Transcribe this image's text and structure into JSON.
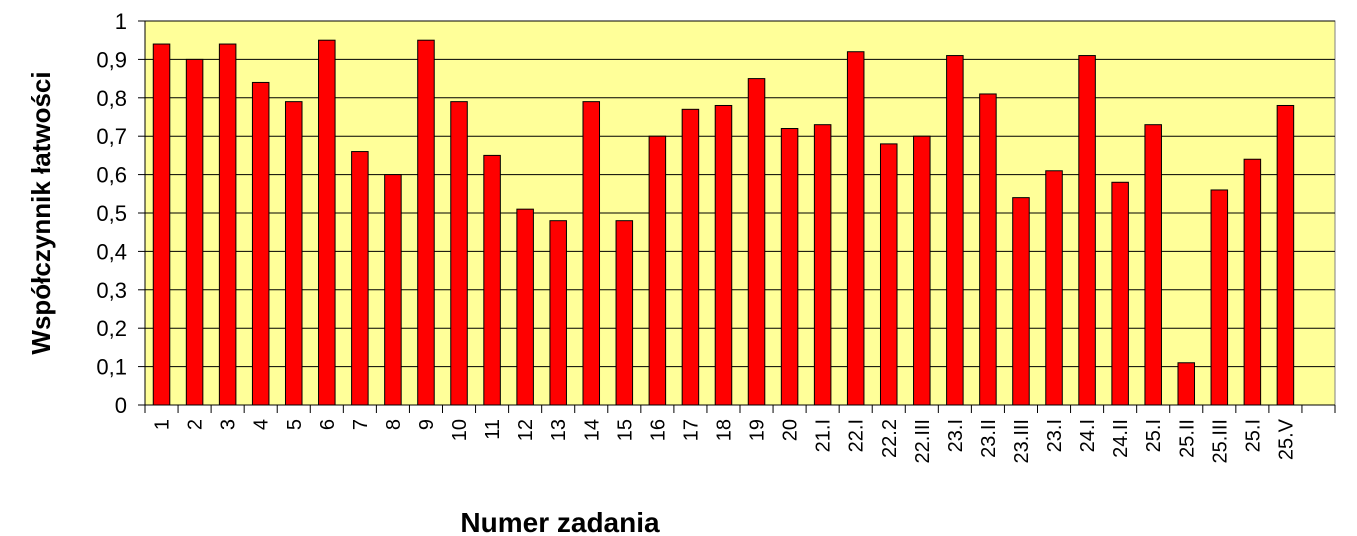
{
  "chart_data": {
    "type": "bar",
    "x_label": "Numer zadania",
    "y_label": "Współczynnik łatwości",
    "categories": [
      "1",
      "2",
      "3",
      "4",
      "5",
      "6",
      "7",
      "8",
      "9",
      "10",
      "11",
      "12",
      "13",
      "14",
      "15",
      "16",
      "17",
      "18",
      "19",
      "20",
      "21.I",
      "22.I",
      "22.2",
      "22.III",
      "23.I",
      "23.II",
      "23.III",
      "23.I",
      "24.I",
      "24.II",
      "25.I",
      "25.II",
      "25.III",
      "25.I",
      "25.V",
      null
    ],
    "values": [
      0.94,
      0.9,
      0.94,
      0.84,
      0.79,
      0.95,
      0.66,
      0.6,
      0.95,
      0.79,
      0.65,
      0.51,
      0.48,
      0.79,
      0.48,
      0.7,
      0.77,
      0.78,
      0.85,
      0.72,
      0.73,
      0.92,
      0.68,
      0.7,
      0.91,
      0.81,
      0.54,
      0.61,
      0.91,
      0.58,
      0.73,
      0.11,
      0.56,
      0.64,
      0.78,
      null
    ],
    "color": "#ff0000",
    "background": "#ffff99",
    "ylim": [
      0,
      1
    ],
    "yticks": [
      0,
      {
        "value": 0.1,
        "label": "0,1"
      },
      {
        "value": 0.2,
        "label": "0,2"
      },
      {
        "value": 0.3,
        "label": "0,3"
      },
      {
        "value": 0.4,
        "label": "0,4"
      },
      {
        "value": 0.5,
        "label": "0,5"
      },
      {
        "value": 0.6,
        "label": "0,6"
      },
      {
        "value": 0.7,
        "label": "0,7"
      },
      {
        "value": 0.8,
        "label": "0,8"
      },
      {
        "value": 0.9,
        "label": "0,9"
      },
      1
    ],
    "grid": true
  }
}
